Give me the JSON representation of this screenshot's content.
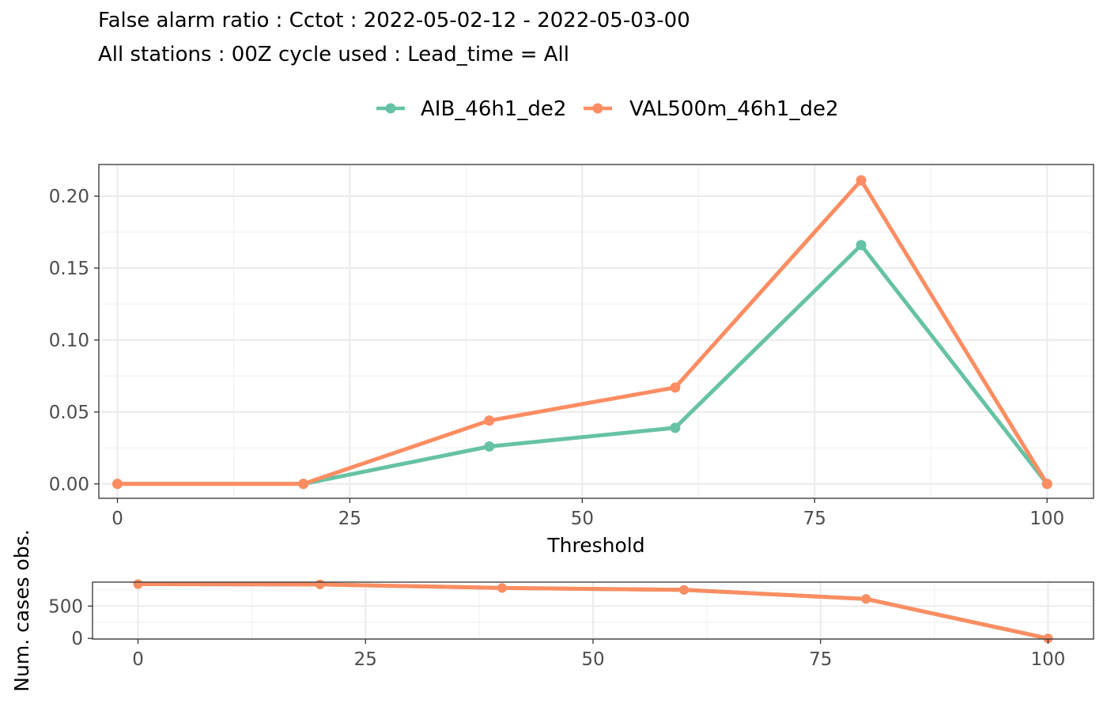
{
  "title": "False alarm ratio : Cctot : 2022-05-02-12 - 2022-05-03-00",
  "subtitle": "All stations : 00Z cycle used : Lead_time = All",
  "colors": {
    "AIB_46h1_de2": "#66c2a5",
    "VAL500m_46h1_de2": "#fc8d62"
  },
  "chart_data": [
    {
      "type": "line",
      "xlabel": "Threshold",
      "ylabel": "",
      "xlim": [
        -2,
        105
      ],
      "ylim": [
        -0.01,
        0.222
      ],
      "xticks": [
        0,
        25,
        50,
        75,
        100
      ],
      "xtick_labels": [
        "0",
        "25",
        "50",
        "75",
        "100"
      ],
      "yticks": [
        0,
        0.05,
        0.1,
        0.15,
        0.2
      ],
      "ytick_labels": [
        "0.00",
        "0.05",
        "0.10",
        "0.15",
        "0.20"
      ],
      "grid": true,
      "legend_position": "top",
      "x": [
        0,
        20,
        40,
        60,
        80,
        100
      ],
      "series": [
        {
          "name": "AIB_46h1_de2",
          "values": [
            0,
            0,
            0.026,
            0.039,
            0.166,
            0
          ]
        },
        {
          "name": "VAL500m_46h1_de2",
          "values": [
            0,
            0,
            0.044,
            0.067,
            0.211,
            0
          ]
        }
      ]
    },
    {
      "type": "line",
      "xlabel": "",
      "ylabel": "Num. cases obs.",
      "xlim": [
        -5,
        105
      ],
      "ylim": [
        -10,
        870
      ],
      "xticks": [
        0,
        25,
        50,
        75,
        100
      ],
      "xtick_labels": [
        "0",
        "25",
        "50",
        "75",
        "100"
      ],
      "yticks": [
        0,
        500
      ],
      "ytick_labels": [
        "0",
        "500"
      ],
      "grid": true,
      "x": [
        0,
        20,
        40,
        60,
        80,
        100
      ],
      "series": [
        {
          "name": "AIB_46h1_de2",
          "values": [
            840,
            835,
            780,
            750,
            610,
            0
          ]
        },
        {
          "name": "VAL500m_46h1_de2",
          "values": [
            840,
            835,
            780,
            750,
            610,
            0
          ]
        }
      ]
    }
  ]
}
